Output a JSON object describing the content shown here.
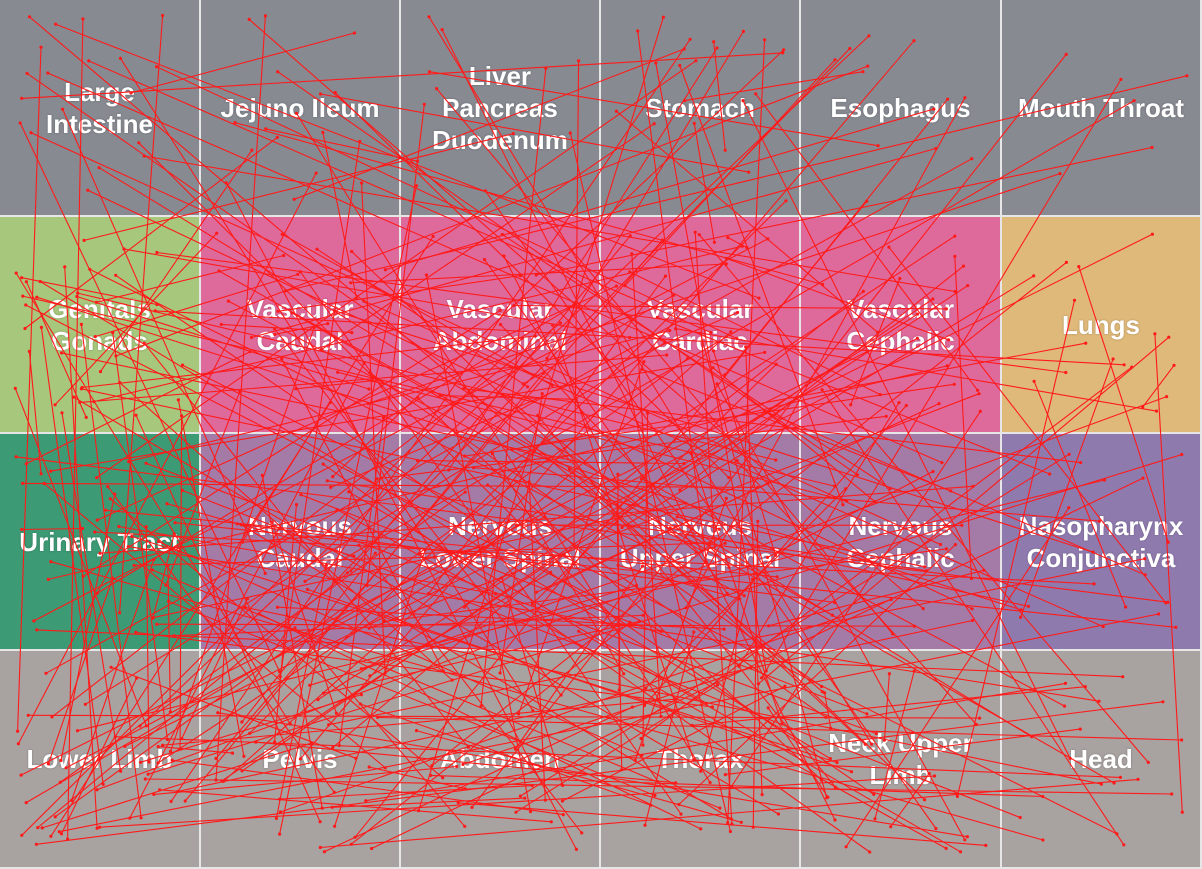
{
  "grid": {
    "columns": 6,
    "rows": 4,
    "regions": [
      {
        "label": "Large\nIntestine",
        "color": "#878a91",
        "row": 0,
        "col": 0
      },
      {
        "label": "Jejuno Ileum",
        "color": "#878a91",
        "row": 0,
        "col": 1
      },
      {
        "label": "Liver\nPancreas\nDuodenum",
        "color": "#878a91",
        "row": 0,
        "col": 2
      },
      {
        "label": "Stomach",
        "color": "#878a91",
        "row": 0,
        "col": 3
      },
      {
        "label": "Esophagus",
        "color": "#878a91",
        "row": 0,
        "col": 4
      },
      {
        "label": "Mouth Throat",
        "color": "#878a91",
        "row": 0,
        "col": 5
      },
      {
        "label": "Genitals\nGonads",
        "color": "#a6c77c",
        "row": 1,
        "col": 0
      },
      {
        "label": "Vascular\nCaudal",
        "color": "#de6a9c",
        "row": 1,
        "col": 1
      },
      {
        "label": "Vascular\nAbdominal",
        "color": "#de6a9c",
        "row": 1,
        "col": 2
      },
      {
        "label": "Vascular\nCardiac",
        "color": "#de6a9c",
        "row": 1,
        "col": 3
      },
      {
        "label": "Vascular\nCephalic",
        "color": "#de6a9c",
        "row": 1,
        "col": 4
      },
      {
        "label": "Lungs",
        "color": "#dfb97a",
        "row": 1,
        "col": 5
      },
      {
        "label": "Urinary Tract",
        "color": "#3c9a74",
        "row": 2,
        "col": 0
      },
      {
        "label": "Nervous\nCaudal",
        "color": "#a47aa6",
        "row": 2,
        "col": 1
      },
      {
        "label": "Nervous\nLower Spinal",
        "color": "#a47aa6",
        "row": 2,
        "col": 2
      },
      {
        "label": "Nervous\nUpper Spinal",
        "color": "#a47aa6",
        "row": 2,
        "col": 3
      },
      {
        "label": "Nervous\nCephalic",
        "color": "#a47aa6",
        "row": 2,
        "col": 4
      },
      {
        "label": "Nasopharynx\nConjunctiva",
        "color": "#8f7aae",
        "row": 2,
        "col": 5
      },
      {
        "label": "Lower Limb",
        "color": "#a8a2a1",
        "row": 3,
        "col": 0
      },
      {
        "label": "Pelvis",
        "color": "#a8a2a1",
        "row": 3,
        "col": 1
      },
      {
        "label": "Abdomen",
        "color": "#a8a2a1",
        "row": 3,
        "col": 2
      },
      {
        "label": "Thorax",
        "color": "#a8a2a1",
        "row": 3,
        "col": 3
      },
      {
        "label": "Neck Upper\nLimb",
        "color": "#a8a2a1",
        "row": 3,
        "col": 4
      },
      {
        "label": "Head",
        "color": "#a8a2a1",
        "row": 3,
        "col": 5
      }
    ]
  },
  "connections": {
    "color": "#ff1a1a",
    "seed": 7,
    "count": 360
  }
}
